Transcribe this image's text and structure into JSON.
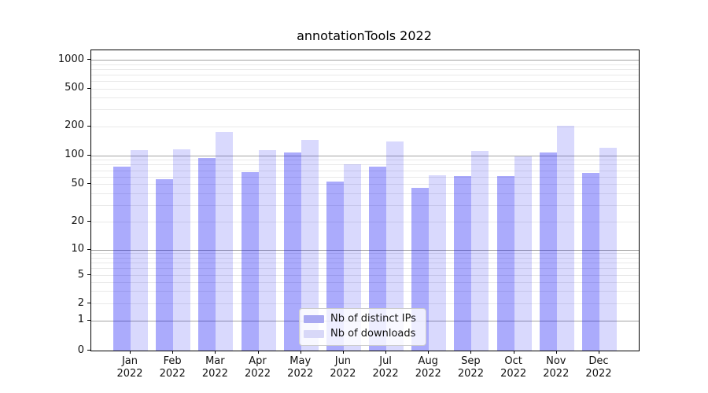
{
  "chart_data": {
    "type": "bar",
    "title": "annotationTools 2022",
    "xlabel": "",
    "ylabel": "",
    "categories": [
      {
        "month": "Jan",
        "year": "2022"
      },
      {
        "month": "Feb",
        "year": "2022"
      },
      {
        "month": "Mar",
        "year": "2022"
      },
      {
        "month": "Apr",
        "year": "2022"
      },
      {
        "month": "May",
        "year": "2022"
      },
      {
        "month": "Jun",
        "year": "2022"
      },
      {
        "month": "Jul",
        "year": "2022"
      },
      {
        "month": "Aug",
        "year": "2022"
      },
      {
        "month": "Sep",
        "year": "2022"
      },
      {
        "month": "Oct",
        "year": "2022"
      },
      {
        "month": "Nov",
        "year": "2022"
      },
      {
        "month": "Dec",
        "year": "2022"
      }
    ],
    "series": [
      {
        "name": "Nb of distinct IPs",
        "color": "rgba(10,10,245,0.34)",
        "color_solid": "#a9a9f2",
        "values": [
          76,
          56,
          94,
          67,
          108,
          53,
          76,
          46,
          61,
          61,
          108,
          66
        ]
      },
      {
        "name": "Nb of downloads",
        "color": "rgba(10,10,245,0.155)",
        "color_solid": "#d8d8f8",
        "values": [
          114,
          116,
          176,
          113,
          146,
          80,
          140,
          62,
          111,
          97,
          204,
          121
        ]
      }
    ],
    "y_ticks": [
      0,
      1,
      2,
      5,
      10,
      20,
      50,
      100,
      200,
      500,
      1000
    ],
    "y_scale": "log-like (symlog, linear below 1)",
    "ylim": [
      0,
      1255
    ],
    "grid": true,
    "legend_position": "lower center inside"
  },
  "colors": {
    "grid_major": "#a3a3a3",
    "grid_minor": "#e9e9e9",
    "spine": "#000000",
    "text": "#111111",
    "legend_border": "#cccccc",
    "legend_bg": "rgba(255,255,255,0.8)"
  }
}
